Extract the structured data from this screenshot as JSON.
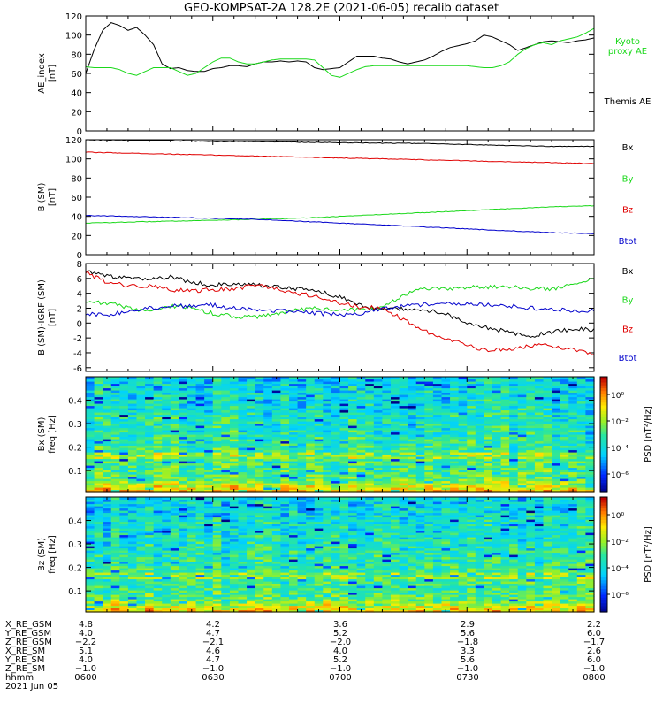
{
  "title": "GEO-KOMPSAT-2A 128.2E (2021-06-05) recalib dataset",
  "colors": {
    "black": "#000000",
    "red": "#e00000",
    "green": "#1ad81a",
    "blue": "#0000cc"
  },
  "chart_data": [
    {
      "type": "line",
      "panel": "ae",
      "ylabel": "AE_index\n[nT]",
      "ylim": [
        0,
        120
      ],
      "yticks": [
        "0",
        "20",
        "40",
        "60",
        "80",
        "100",
        "120"
      ],
      "x": [
        0,
        2,
        4,
        6,
        8,
        10,
        12,
        14,
        16,
        18,
        20,
        22,
        24,
        26,
        28,
        30,
        32,
        34,
        36,
        38,
        40,
        42,
        44,
        46,
        48,
        50,
        52,
        54,
        56,
        58,
        60,
        62,
        64,
        66,
        68,
        70,
        72,
        74,
        76,
        78,
        80,
        82,
        84,
        86,
        88,
        90,
        92,
        94,
        96,
        98,
        100,
        102,
        104,
        106,
        108,
        110,
        112,
        114,
        116,
        118,
        120
      ],
      "series": [
        {
          "name": "Themis AE",
          "color": "black",
          "label_lines": [
            "Themis AE"
          ],
          "values": [
            60,
            85,
            105,
            113,
            110,
            105,
            108,
            100,
            90,
            70,
            65,
            66,
            63,
            62,
            62,
            65,
            66,
            68,
            68,
            67,
            70,
            72,
            72,
            73,
            72,
            73,
            72,
            66,
            64,
            65,
            66,
            72,
            78,
            78,
            78,
            76,
            75,
            72,
            70,
            72,
            74,
            78,
            83,
            87,
            89,
            91,
            94,
            100,
            98,
            94,
            90,
            84,
            87,
            90,
            93,
            94,
            93,
            92,
            94,
            95,
            97
          ]
        },
        {
          "name": "Kyoto proxy AE",
          "color": "green",
          "label_lines": [
            "Kyoto",
            "proxy AE"
          ],
          "values": [
            67,
            66,
            66,
            66,
            64,
            60,
            58,
            62,
            66,
            66,
            66,
            62,
            58,
            60,
            66,
            72,
            76,
            76,
            72,
            70,
            70,
            72,
            74,
            75,
            75,
            75,
            75,
            74,
            66,
            58,
            56,
            60,
            64,
            67,
            68,
            68,
            68,
            68,
            68,
            68,
            68,
            68,
            68,
            68,
            68,
            68,
            67,
            66,
            66,
            68,
            72,
            80,
            86,
            90,
            92,
            90,
            94,
            96,
            98,
            102,
            107
          ]
        }
      ]
    },
    {
      "type": "line",
      "panel": "b",
      "ylabel": "B (SM)\n[nT]",
      "ylim": [
        0,
        120
      ],
      "yticks": [
        "0",
        "20",
        "40",
        "60",
        "80",
        "100",
        "120"
      ],
      "x": [
        0,
        10,
        20,
        30,
        40,
        50,
        60,
        70,
        80,
        90,
        100,
        110,
        120
      ],
      "series": [
        {
          "name": "Bx",
          "color": "black",
          "label_lines": [
            "Bx"
          ],
          "values": [
            120,
            119.5,
            119,
            118,
            118,
            117.5,
            117,
            116.5,
            116,
            115,
            114,
            113,
            113
          ]
        },
        {
          "name": "By",
          "color": "green",
          "label_lines": [
            "By"
          ],
          "values": [
            33,
            34,
            35,
            36,
            37,
            38,
            40,
            42,
            44,
            46,
            48,
            50,
            51
          ]
        },
        {
          "name": "Bz",
          "color": "red",
          "label_lines": [
            "Bz"
          ],
          "values": [
            107,
            106,
            105,
            104,
            103,
            102,
            101,
            100,
            99,
            98,
            97,
            96,
            95
          ]
        },
        {
          "name": "Btot",
          "color": "blue",
          "label_lines": [
            "Btot"
          ],
          "values": [
            41,
            40,
            39,
            38,
            37,
            35,
            33,
            31,
            29,
            27,
            25,
            23,
            22
          ]
        }
      ]
    },
    {
      "type": "line",
      "panel": "db",
      "ylabel": "B (SM)-IGRF (SM)\n[nT]",
      "ylim": [
        -6.5,
        8
      ],
      "yticks": [
        "-6",
        "-4",
        "-2",
        "0",
        "2",
        "4",
        "6",
        "8"
      ],
      "x": [
        0,
        5,
        10,
        15,
        20,
        25,
        30,
        35,
        40,
        45,
        50,
        55,
        60,
        65,
        70,
        75,
        80,
        85,
        90,
        95,
        100,
        105,
        110,
        115,
        120
      ],
      "series": [
        {
          "name": "Bx",
          "color": "black",
          "label_lines": [
            "Bx"
          ],
          "values": [
            7,
            6.3,
            6,
            5.8,
            6.2,
            5.5,
            5.1,
            5.2,
            5.1,
            4.9,
            4.6,
            4.3,
            3.5,
            2.3,
            1.9,
            1.9,
            1.8,
            1.3,
            -0.1,
            -0.7,
            -1.2,
            -1.8,
            -1.2,
            -0.8,
            -0.9
          ]
        },
        {
          "name": "By",
          "color": "green",
          "label_lines": [
            "By"
          ],
          "values": [
            2.9,
            2.7,
            2.1,
            1.5,
            2.3,
            2.0,
            1.3,
            0.9,
            0.8,
            1.2,
            1.8,
            2.0,
            1.8,
            1.7,
            2.0,
            3.8,
            4.7,
            4.6,
            4.8,
            4.8,
            4.9,
            4.6,
            4.6,
            5.2,
            5.9
          ]
        },
        {
          "name": "Bz",
          "color": "red",
          "label_lines": [
            "Bz"
          ],
          "values": [
            6.8,
            5.5,
            5.0,
            5.0,
            4.5,
            4.3,
            4.5,
            4.6,
            5.1,
            4.6,
            4.0,
            3.6,
            2.7,
            2.1,
            2.1,
            0.4,
            -1.1,
            -2.0,
            -3.1,
            -3.6,
            -3.6,
            -3.0,
            -3.0,
            -3.6,
            -4.2
          ]
        },
        {
          "name": "Btot",
          "color": "blue",
          "label_lines": [
            "Btot"
          ],
          "values": [
            1.2,
            1.1,
            1.6,
            2.0,
            2.3,
            2.3,
            2.4,
            2.0,
            1.8,
            1.7,
            1.5,
            1.3,
            1.1,
            1.3,
            1.9,
            2.3,
            2.5,
            2.6,
            2.7,
            2.4,
            2.3,
            2.0,
            1.8,
            1.7,
            1.7
          ]
        }
      ]
    },
    {
      "type": "heatmap",
      "panel": "spec1",
      "ylabel": "Bx (SM)\nfreq [Hz]",
      "ylim": [
        0.01,
        0.5
      ],
      "yticks": [
        "0.1",
        "0.2",
        "0.3",
        "0.4"
      ],
      "seed": 17,
      "colorbar": {
        "label": "PSD [nT²/Hz]",
        "ticks": [
          "10⁰",
          "10⁻²",
          "10⁻⁴",
          "10⁻⁶"
        ]
      }
    },
    {
      "type": "heatmap",
      "panel": "spec2",
      "ylabel": "Bz (SM)\nfreq [Hz]",
      "ylim": [
        0.01,
        0.5
      ],
      "yticks": [
        "0.1",
        "0.2",
        "0.3",
        "0.4"
      ],
      "seed": 91,
      "colorbar": {
        "label": "PSD [nT²/Hz]",
        "ticks": [
          "10⁰",
          "10⁻²",
          "10⁻⁴",
          "10⁻⁶"
        ]
      }
    }
  ],
  "orbit_table": {
    "rows": [
      {
        "label": "X_RE_GSM",
        "values": [
          "4.8",
          "4.2",
          "3.6",
          "2.9",
          "2.2"
        ]
      },
      {
        "label": "Y_RE_GSM",
        "values": [
          "4.0",
          "4.7",
          "5.2",
          "5.6",
          "6.0"
        ]
      },
      {
        "label": "Z_RE_GSM",
        "values": [
          "−2.2",
          "−2.1",
          "−2.0",
          "−1.8",
          "−1.7"
        ]
      },
      {
        "label": "X_RE_SM",
        "values": [
          "5.1",
          "4.6",
          "4.0",
          "3.3",
          "2.6"
        ]
      },
      {
        "label": "Y_RE_SM",
        "values": [
          "4.0",
          "4.7",
          "5.2",
          "5.6",
          "6.0"
        ]
      },
      {
        "label": "Z_RE_SM",
        "values": [
          "−1.0",
          "−1.0",
          "−1.0",
          "−1.0",
          "−1.0"
        ]
      },
      {
        "label": "hhmm",
        "values": [
          "0600",
          "0630",
          "0700",
          "0730",
          "0800"
        ]
      }
    ],
    "date": "2021 Jun 05"
  }
}
